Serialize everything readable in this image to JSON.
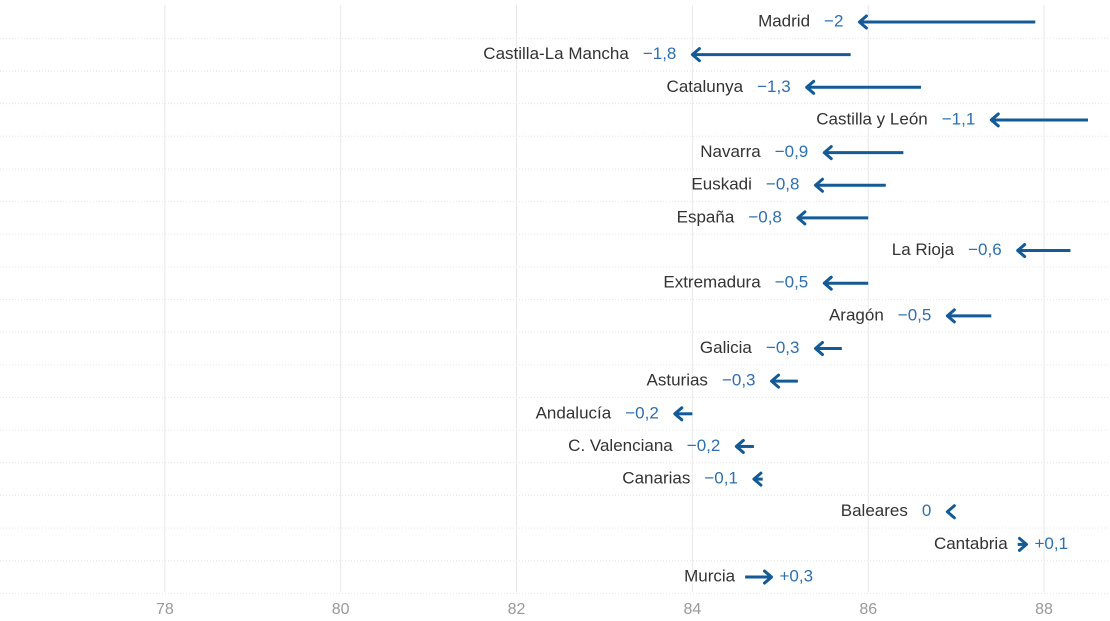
{
  "chart_data": {
    "type": "arrow",
    "categories": [
      "Madrid",
      "Castilla-La Mancha",
      "Catalunya",
      "Castilla y León",
      "Navarra",
      "Euskadi",
      "España",
      "La Rioja",
      "Extremadura",
      "Aragón",
      "Galicia",
      "Asturias",
      "Andalucía",
      "C. Valenciana",
      "Canarias",
      "Baleares",
      "Cantabria",
      "Murcia"
    ],
    "start": [
      87.9,
      85.8,
      86.6,
      88.5,
      86.4,
      86.2,
      86.0,
      88.3,
      86.0,
      87.4,
      85.7,
      85.2,
      84.0,
      84.7,
      84.8,
      86.9,
      87.7,
      84.6
    ],
    "end": [
      85.9,
      84.0,
      85.3,
      87.4,
      85.5,
      85.4,
      85.2,
      87.7,
      85.5,
      86.9,
      85.4,
      84.9,
      83.8,
      84.5,
      84.7,
      86.9,
      87.8,
      84.9
    ],
    "values": [
      -2,
      -1.8,
      -1.3,
      -1.1,
      -0.9,
      -0.8,
      -0.8,
      -0.6,
      -0.5,
      -0.5,
      -0.3,
      -0.3,
      -0.2,
      -0.2,
      -0.1,
      0,
      0.1,
      0.3
    ],
    "value_labels": [
      "−2",
      "−1,8",
      "−1,3",
      "−1,1",
      "−0,9",
      "−0,8",
      "−0,8",
      "−0,6",
      "−0,5",
      "−0,5",
      "−0,3",
      "−0,3",
      "−0,2",
      "−0,2",
      "−0,1",
      "0",
      "+0,1",
      "+0,3"
    ],
    "color": "#135a96",
    "label_color": "#2f6fae",
    "xlim": [
      76.125,
      88.75
    ],
    "xticks": [
      78,
      80,
      82,
      84,
      86,
      88
    ],
    "grid": true
  }
}
